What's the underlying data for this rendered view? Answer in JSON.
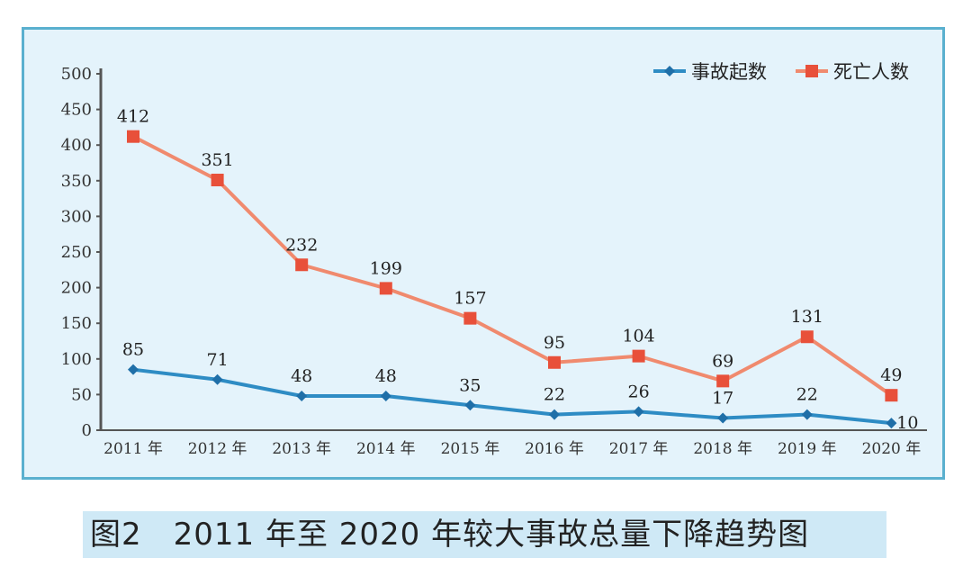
{
  "chart_data": {
    "type": "line",
    "title": "",
    "categories": [
      "2011 年",
      "2012 年",
      "2013 年",
      "2014 年",
      "2015 年",
      "2016 年",
      "2017 年",
      "2018 年",
      "2019 年",
      "2020 年"
    ],
    "ylim": [
      0,
      500
    ],
    "yticks": [
      0,
      50,
      100,
      150,
      200,
      250,
      300,
      350,
      400,
      450,
      500
    ],
    "grid": false,
    "legend_position": "top-right",
    "series": [
      {
        "name": "事故起数",
        "color": "#2e8cc4",
        "marker": "diamond",
        "values": [
          85,
          71,
          48,
          48,
          35,
          22,
          26,
          17,
          22,
          10
        ]
      },
      {
        "name": "死亡人数",
        "color": "#f08a6e",
        "marker_color": "#e8503a",
        "marker": "square",
        "values": [
          412,
          351,
          232,
          199,
          157,
          95,
          104,
          69,
          131,
          49
        ]
      }
    ]
  },
  "caption": "图2　2011 年至 2020 年较大事故总量下降趋势图"
}
